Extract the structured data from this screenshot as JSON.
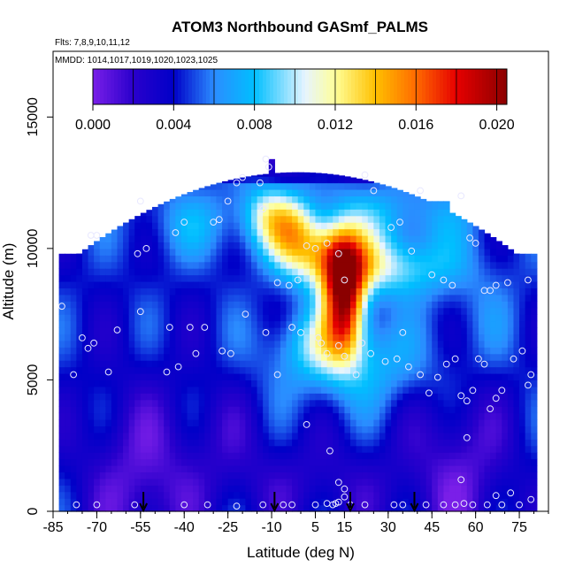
{
  "chart_data": {
    "type": "heatmap",
    "title": "ATOM3 Northbound GASmf_PALMS",
    "subtitle_flights": "Flts: 7,8,9,10,11,12",
    "subtitle_mmdd": "MMDD: 1014,1017,1019,1020,1023,1025",
    "xlabel": "Latitude (deg N)",
    "ylabel": "Altitude (m)",
    "xlim": [
      -85,
      85
    ],
    "ylim": [
      0,
      17500
    ],
    "x_ticks": [
      -85,
      -70,
      -55,
      -40,
      -25,
      -10,
      5,
      15,
      30,
      45,
      60,
      75
    ],
    "x_tick_labels": [
      "-85",
      "-70",
      "-55",
      "-40",
      "-25",
      "-10",
      "5",
      "15",
      "30",
      "45",
      "60",
      "75"
    ],
    "y_ticks": [
      0,
      5000,
      10000,
      15000
    ],
    "y_tick_labels": [
      "0",
      "5000",
      "10000",
      "15000"
    ],
    "colorbar": {
      "min": 0.0,
      "max": 0.0205,
      "ticks": [
        0.0,
        0.004,
        0.008,
        0.012,
        0.016,
        0.02
      ],
      "tick_labels": [
        "0.000",
        "0.004",
        "0.008",
        "0.012",
        "0.016",
        "0.020"
      ],
      "stops": [
        {
          "v": 0.0,
          "c": "#7a1fe8"
        },
        {
          "v": 0.002,
          "c": "#2a00cc"
        },
        {
          "v": 0.004,
          "c": "#0000c8"
        },
        {
          "v": 0.006,
          "c": "#2b8cff"
        },
        {
          "v": 0.008,
          "c": "#00bfff"
        },
        {
          "v": 0.0105,
          "c": "#e6f4ff"
        },
        {
          "v": 0.012,
          "c": "#ffff99"
        },
        {
          "v": 0.014,
          "c": "#ffc000"
        },
        {
          "v": 0.016,
          "c": "#ff6a00"
        },
        {
          "v": 0.018,
          "c": "#e60000"
        },
        {
          "v": 0.0205,
          "c": "#8b0000"
        }
      ]
    },
    "arrow_latitudes": [
      -54,
      -9,
      17,
      39
    ],
    "observations": [
      [
        -82,
        7800
      ],
      [
        -78,
        5200
      ],
      [
        -75,
        6600
      ],
      [
        -73,
        6200
      ],
      [
        -71,
        6400
      ],
      [
        -63,
        6900
      ],
      [
        -66,
        5300
      ],
      [
        -55,
        7600
      ],
      [
        -45,
        7000
      ],
      [
        -46,
        5300
      ],
      [
        -42,
        5500
      ],
      [
        -38,
        7000
      ],
      [
        -36,
        6000
      ],
      [
        -33,
        7000
      ],
      [
        -27,
        6100
      ],
      [
        -24,
        6000
      ],
      [
        -19,
        7500
      ],
      [
        -12,
        6800
      ],
      [
        -8,
        5200
      ],
      [
        -3,
        7000
      ],
      [
        0,
        6800
      ],
      [
        6,
        6600
      ],
      [
        7,
        6400
      ],
      [
        9,
        6000
      ],
      [
        13,
        6300
      ],
      [
        15,
        5900
      ],
      [
        19,
        5200
      ],
      [
        21,
        6400
      ],
      [
        24,
        6000
      ],
      [
        29,
        5700
      ],
      [
        33,
        5800
      ],
      [
        35,
        6800
      ],
      [
        37,
        5500
      ],
      [
        41,
        5200
      ],
      [
        44,
        4500
      ],
      [
        47,
        5100
      ],
      [
        50,
        5600
      ],
      [
        53,
        5800
      ],
      [
        55,
        4400
      ],
      [
        57,
        4200
      ],
      [
        59,
        4600
      ],
      [
        61,
        5800
      ],
      [
        63,
        5600
      ],
      [
        65,
        3900
      ],
      [
        67,
        4300
      ],
      [
        69,
        4600
      ],
      [
        73,
        5800
      ],
      [
        76,
        6100
      ],
      [
        78,
        4800
      ],
      [
        79,
        5200
      ],
      [
        -72,
        10500
      ],
      [
        -70,
        10500
      ],
      [
        -56,
        9800
      ],
      [
        -53,
        10000
      ],
      [
        -43,
        10600
      ],
      [
        -40,
        11000
      ],
      [
        -30,
        11000
      ],
      [
        -28,
        11100
      ],
      [
        -25,
        11800
      ],
      [
        -22,
        12500
      ],
      [
        -20,
        12700
      ],
      [
        -14,
        12500
      ],
      [
        -13,
        11500
      ],
      [
        -11,
        13100
      ],
      [
        -12,
        13400
      ],
      [
        -8,
        8700
      ],
      [
        -4,
        8600
      ],
      [
        -1,
        8800
      ],
      [
        2,
        10100
      ],
      [
        5,
        10000
      ],
      [
        9,
        10200
      ],
      [
        13,
        9800
      ],
      [
        15,
        8800
      ],
      [
        22,
        12800
      ],
      [
        25,
        12200
      ],
      [
        31,
        10800
      ],
      [
        34,
        11000
      ],
      [
        38,
        9900
      ],
      [
        41,
        12200
      ],
      [
        45,
        9000
      ],
      [
        49,
        8800
      ],
      [
        52,
        8600
      ],
      [
        55,
        12000
      ],
      [
        58,
        10400
      ],
      [
        60,
        10200
      ],
      [
        63,
        8400
      ],
      [
        65,
        8400
      ],
      [
        67,
        8600
      ],
      [
        71,
        8700
      ],
      [
        78,
        8800
      ],
      [
        -55,
        11800
      ],
      [
        -77,
        250
      ],
      [
        -70,
        250
      ],
      [
        -57,
        250
      ],
      [
        -40,
        250
      ],
      [
        -32,
        250
      ],
      [
        -22,
        200
      ],
      [
        -13,
        250
      ],
      [
        -6,
        250
      ],
      [
        -3,
        250
      ],
      [
        5,
        250
      ],
      [
        9,
        300
      ],
      [
        11,
        250
      ],
      [
        13,
        350
      ],
      [
        15,
        850
      ],
      [
        15,
        550
      ],
      [
        17,
        250
      ],
      [
        22,
        250
      ],
      [
        32,
        250
      ],
      [
        35,
        250
      ],
      [
        43,
        250
      ],
      [
        49,
        250
      ],
      [
        53,
        250
      ],
      [
        56,
        300
      ],
      [
        59,
        250
      ],
      [
        64,
        250
      ],
      [
        69,
        250
      ],
      [
        75,
        250
      ],
      [
        79,
        450
      ],
      [
        72,
        700
      ],
      [
        67,
        600
      ],
      [
        55,
        1200
      ],
      [
        57,
        2800
      ],
      [
        10,
        2300
      ],
      [
        2,
        3300
      ],
      [
        13,
        1100
      ],
      [
        12,
        300
      ]
    ]
  }
}
